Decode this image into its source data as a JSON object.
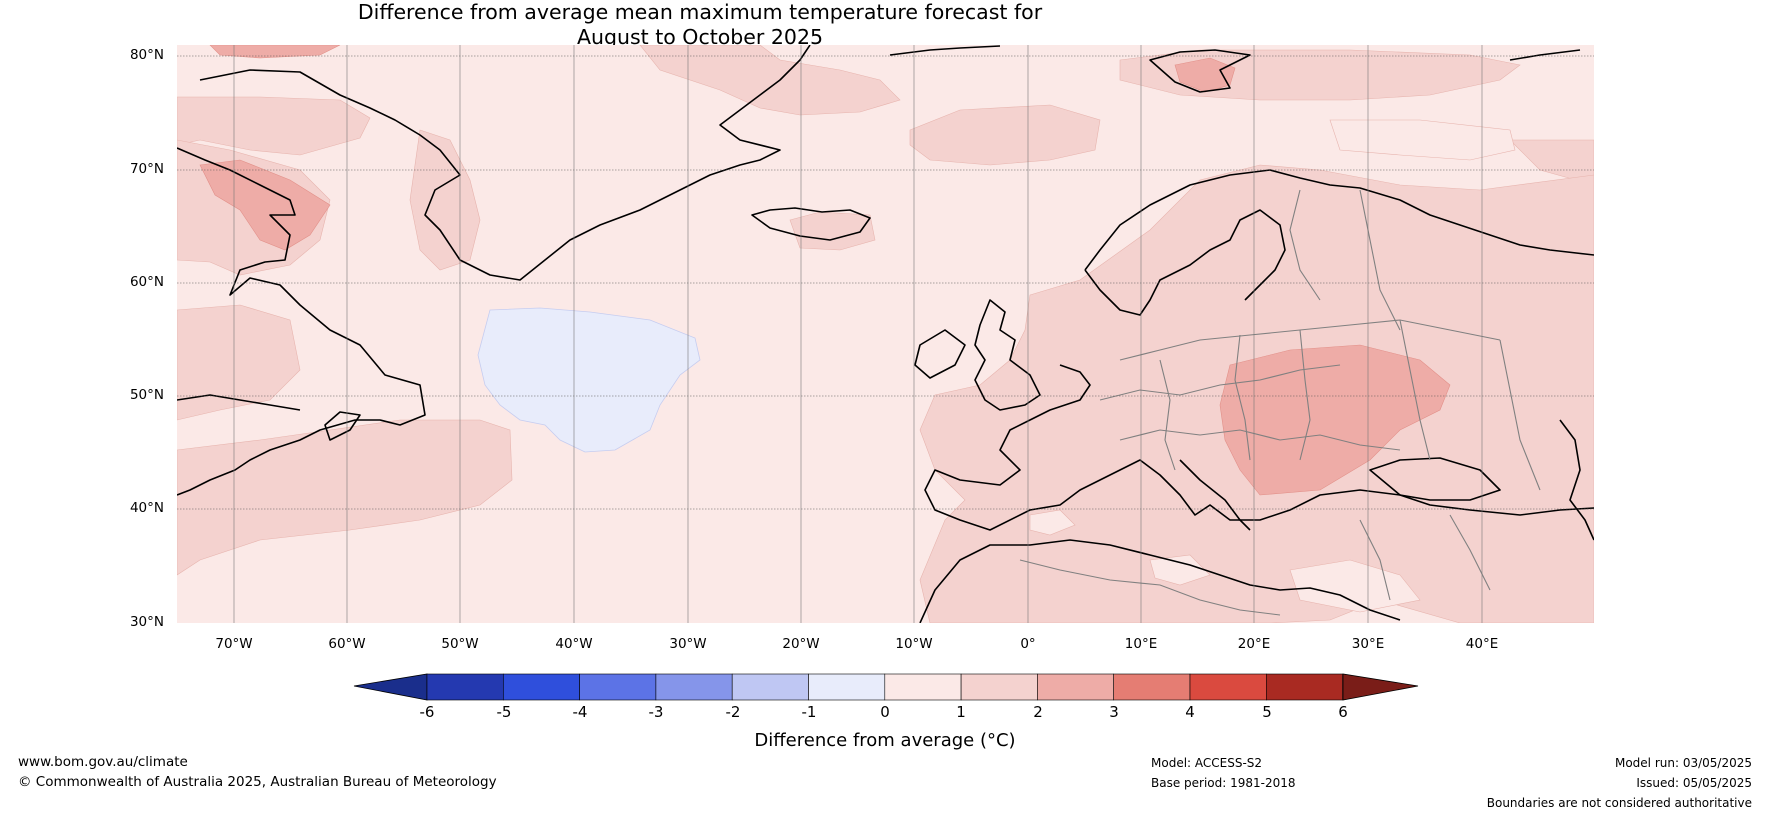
{
  "title": {
    "line1": "Difference from average mean maximum temperature forecast for",
    "line2": "August to October 2025"
  },
  "map": {
    "lat_ticks": [
      "80°N",
      "70°N",
      "60°N",
      "50°N",
      "40°N",
      "30°N"
    ],
    "lon_ticks": [
      "70°W",
      "60°W",
      "50°W",
      "40°W",
      "30°W",
      "20°W",
      "10°W",
      "0°",
      "10°E",
      "20°E",
      "30°E",
      "40°E"
    ],
    "extent": {
      "lon_min": -75,
      "lon_max": 50,
      "lat_min": 30,
      "lat_max": 81
    },
    "grid": true
  },
  "colorbar": {
    "ticks": [
      "-6",
      "-5",
      "-4",
      "-3",
      "-2",
      "-1",
      "0",
      "1",
      "2",
      "3",
      "4",
      "5",
      "6"
    ],
    "colors": [
      "#1a2e8c",
      "#2439b0",
      "#2f4fdc",
      "#5c73e6",
      "#8595ea",
      "#bfc7f3",
      "#e8ecfb",
      "#fbe9e7",
      "#f4d2cf",
      "#eeaca7",
      "#e57d73",
      "#da4a3f",
      "#a92a22",
      "#7a1d18"
    ],
    "label": "Difference from average (°C)"
  },
  "footer": {
    "website": "www.bom.gov.au/climate",
    "copyright": "© Commonwealth of Australia 2025, Australian Bureau of Meteorology",
    "model": "Model: ACCESS-S2",
    "base_period": "Base period: 1981-2018",
    "model_run": "Model run: 03/05/2025",
    "issued": "Issued: 05/05/2025",
    "disclaimer": "Boundaries are not considered authoritative"
  }
}
